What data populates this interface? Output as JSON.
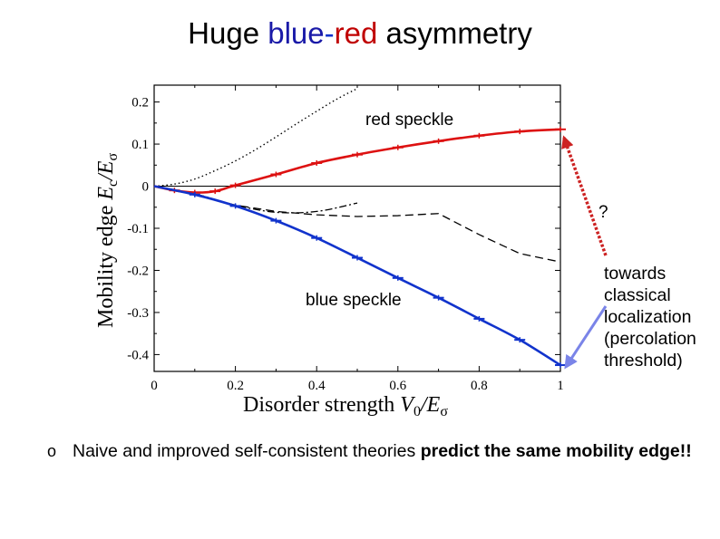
{
  "title": {
    "part1": "Huge ",
    "part2": "blue-red",
    "part3": " asymmetry"
  },
  "annotations": {
    "red_speckle": "red speckle",
    "blue_speckle": "blue speckle",
    "question": "?",
    "towards": [
      "towards",
      "classical",
      "localization",
      "(percolation",
      "threshold)"
    ]
  },
  "bullet": {
    "marker": "o",
    "normal": "Naive and improved self-consistent theories ",
    "bold": "predict the same mobility edge!!"
  },
  "colors": {
    "red": "#dd1111",
    "blue": "#1133cc",
    "arrow_red": "#cc2222",
    "arrow_blue": "#7a84e8"
  },
  "chart_data": {
    "type": "line",
    "xlabel": "Disorder strength  V0/Eσ",
    "ylabel": "Mobility edge  Ec/Eσ",
    "xlim": [
      0,
      1
    ],
    "ylim": [
      -0.44,
      0.24
    ],
    "x_ticks": [
      "0",
      "0.2",
      "0.4",
      "0.6",
      "0.8",
      "1"
    ],
    "y_ticks": [
      "0.2",
      "0.1",
      "0",
      "-0.1",
      "-0.2",
      "-0.3",
      "-0.4"
    ],
    "series": [
      {
        "style": "red-solid-errorbars",
        "x": [
          0,
          0.05,
          0.1,
          0.15,
          0.2,
          0.3,
          0.4,
          0.5,
          0.6,
          0.7,
          0.8,
          0.9,
          1.0
        ],
        "y": [
          0,
          -0.01,
          -0.015,
          -0.012,
          0.002,
          0.028,
          0.055,
          0.075,
          0.092,
          0.107,
          0.12,
          0.13,
          0.135
        ]
      },
      {
        "style": "blue-solid-errorbars",
        "x": [
          0,
          0.1,
          0.2,
          0.3,
          0.4,
          0.5,
          0.6,
          0.7,
          0.8,
          0.9,
          1.0
        ],
        "y": [
          0,
          -0.02,
          -0.047,
          -0.082,
          -0.123,
          -0.17,
          -0.218,
          -0.265,
          -0.315,
          -0.365,
          -0.425
        ]
      },
      {
        "style": "black-dotted",
        "x": [
          0,
          0.05,
          0.1,
          0.15,
          0.2,
          0.25,
          0.3,
          0.35,
          0.4,
          0.45,
          0.5
        ],
        "y": [
          0,
          0.005,
          0.017,
          0.037,
          0.06,
          0.087,
          0.117,
          0.148,
          0.178,
          0.207,
          0.232
        ]
      },
      {
        "style": "black-dashdot",
        "x": [
          0,
          0.1,
          0.2,
          0.3,
          0.4,
          0.5
        ],
        "y": [
          0,
          -0.018,
          -0.045,
          -0.062,
          -0.06,
          -0.04
        ]
      },
      {
        "style": "black-dashed",
        "x": [
          0,
          0.1,
          0.2,
          0.3,
          0.4,
          0.5,
          0.6,
          0.7,
          0.8,
          0.9,
          1.0
        ],
        "y": [
          0,
          -0.02,
          -0.045,
          -0.06,
          -0.068,
          -0.072,
          -0.07,
          -0.065,
          -0.115,
          -0.16,
          -0.18
        ]
      }
    ]
  }
}
